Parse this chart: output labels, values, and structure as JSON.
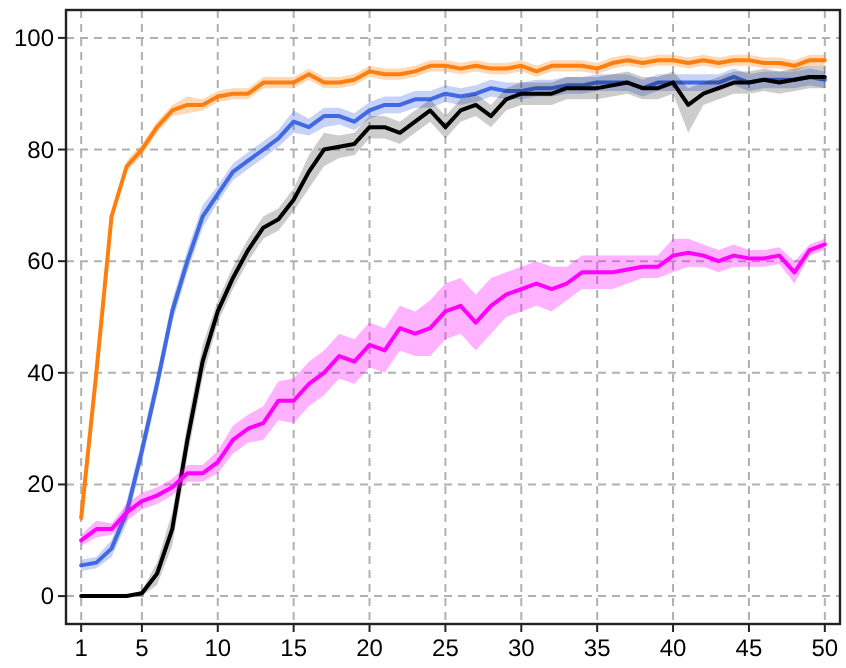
{
  "chart_data": {
    "type": "line",
    "x": [
      1,
      2,
      3,
      4,
      5,
      6,
      7,
      8,
      9,
      10,
      11,
      12,
      13,
      14,
      15,
      16,
      17,
      18,
      19,
      20,
      21,
      22,
      23,
      24,
      25,
      26,
      27,
      28,
      29,
      30,
      31,
      32,
      33,
      34,
      35,
      36,
      37,
      38,
      39,
      40,
      41,
      42,
      43,
      44,
      45,
      46,
      47,
      48,
      49,
      50
    ],
    "xlim": [
      0,
      51
    ],
    "xticks": [
      1,
      5,
      10,
      15,
      20,
      25,
      30,
      35,
      40,
      45,
      50
    ],
    "ylim": [
      -5,
      105
    ],
    "yticks": [
      0,
      20,
      40,
      60,
      80,
      100
    ],
    "grid": true,
    "line_style": "solid",
    "marker": "none",
    "series": [
      {
        "color": "#ff7f0e",
        "values": [
          14,
          40,
          68,
          77,
          80,
          84,
          87,
          88,
          88,
          89.5,
          90,
          90,
          92,
          92,
          92,
          93.5,
          92,
          92,
          92.5,
          94,
          93.5,
          93.5,
          94,
          95,
          95,
          94.5,
          95,
          94.5,
          94.5,
          95,
          94,
          95,
          95,
          95,
          94.5,
          95.5,
          96,
          95.5,
          96,
          96,
          95.5,
          96,
          95.5,
          96,
          96,
          95.5,
          95.5,
          95,
          96,
          96
        ],
        "lower": [
          13,
          39,
          67,
          76,
          79,
          83,
          86,
          86.5,
          87,
          88.5,
          89,
          89,
          91,
          91,
          91,
          92.5,
          91,
          91,
          91.5,
          93,
          92.5,
          92.5,
          93,
          94,
          94,
          93.5,
          94,
          93.5,
          93.5,
          94,
          93,
          94,
          94,
          94,
          93.5,
          94.5,
          95,
          94.5,
          95,
          95,
          94.5,
          95,
          94.5,
          95,
          95,
          94.5,
          94.5,
          94,
          95,
          95
        ],
        "upper": [
          15,
          41,
          69,
          78,
          81,
          85,
          88,
          89.5,
          89,
          90.5,
          91,
          91,
          93,
          93,
          93,
          94.5,
          93,
          93,
          93.5,
          95,
          94.5,
          94.5,
          95,
          96,
          96,
          95.5,
          96,
          95.5,
          95.5,
          96,
          95,
          96,
          96,
          96,
          95.5,
          96.5,
          97,
          96.5,
          97,
          97,
          96.5,
          97,
          96.5,
          97,
          97,
          96.5,
          96.5,
          96,
          97,
          97
        ]
      },
      {
        "color": "#4169e1",
        "values": [
          5.5,
          6,
          8.5,
          15,
          26,
          38,
          51,
          60,
          68,
          72,
          76,
          78,
          80,
          82,
          85,
          84,
          86,
          86,
          85,
          87,
          88,
          88,
          89,
          89,
          90,
          89.5,
          90,
          91,
          90.5,
          90.5,
          91,
          91,
          91.5,
          91.5,
          92,
          92,
          92,
          91,
          92,
          92,
          92,
          92,
          92,
          93,
          92,
          92.5,
          92.5,
          92.5,
          93,
          92.5
        ],
        "lower": [
          4.5,
          5,
          7,
          13,
          24,
          36,
          49,
          58,
          66,
          70.5,
          74.5,
          76.5,
          78.5,
          80.5,
          83,
          82.5,
          84,
          84.5,
          83.5,
          85.5,
          86.5,
          86.5,
          87.5,
          87.5,
          88.5,
          88,
          88.5,
          89.5,
          89,
          89,
          89.5,
          89.5,
          90,
          90,
          90.5,
          90.5,
          90.5,
          89.5,
          90.5,
          90.5,
          90.5,
          90.5,
          90.5,
          91.5,
          90.5,
          91,
          91,
          91,
          91.5,
          91
        ],
        "upper": [
          6.5,
          7,
          10,
          17,
          28,
          40,
          53,
          62,
          70,
          73.5,
          77.5,
          79.5,
          81.5,
          83.5,
          87,
          85.5,
          87.5,
          87.5,
          86.5,
          88.5,
          89.5,
          89.5,
          90.5,
          90.5,
          91.5,
          91,
          91.5,
          92.5,
          92,
          92,
          92.5,
          92.5,
          93,
          93,
          93.5,
          93.5,
          93.5,
          92.5,
          93.5,
          93.5,
          93.5,
          93.5,
          93.5,
          94.5,
          93.5,
          94,
          94,
          94,
          94.5,
          94
        ]
      },
      {
        "color": "#000000",
        "values": [
          0,
          0,
          0,
          0,
          0.5,
          4,
          12,
          28,
          42,
          51,
          57,
          62,
          66,
          67.5,
          71,
          76,
          80,
          80.5,
          81,
          84,
          84,
          83,
          85,
          87,
          84,
          87,
          88,
          86,
          89,
          90,
          90,
          90,
          91,
          91,
          91,
          91.5,
          92,
          91,
          91,
          92,
          88,
          90,
          91,
          92,
          92,
          92.5,
          92,
          92.5,
          93,
          93
        ],
        "lower": [
          0,
          0,
          0,
          0,
          0,
          2,
          9,
          25,
          39,
          49,
          55,
          60,
          64,
          65.5,
          69,
          73,
          77,
          78.5,
          79,
          82,
          82,
          81,
          83,
          85,
          82,
          85,
          86,
          84,
          87,
          88,
          88,
          88,
          89,
          89,
          89,
          89.5,
          90,
          89,
          89,
          90,
          83,
          88,
          89,
          90,
          90,
          90.5,
          90,
          90.5,
          91,
          91
        ],
        "upper": [
          0,
          0,
          0,
          0,
          1,
          6,
          15,
          31,
          45,
          53,
          59,
          64,
          68,
          69.5,
          73,
          79,
          83,
          82.5,
          83,
          86,
          86,
          85,
          87,
          89,
          86,
          89,
          90,
          88,
          91,
          92,
          92,
          92,
          93,
          93,
          93,
          93.5,
          94,
          93,
          93,
          94,
          91,
          92,
          93,
          94,
          94,
          94.5,
          94,
          94.5,
          95,
          95
        ]
      },
      {
        "color": "#ff00ff",
        "values": [
          10,
          12,
          12,
          15,
          17,
          18,
          19.5,
          22,
          22,
          24,
          28,
          30,
          31,
          35,
          35,
          38,
          40,
          43,
          42,
          45,
          44,
          48,
          47,
          48,
          51,
          52,
          49,
          52,
          54,
          55,
          56,
          55,
          56,
          58,
          58,
          58,
          58.5,
          59,
          59,
          61,
          61.5,
          61,
          60,
          61,
          60.5,
          60.5,
          61,
          58,
          62,
          63
        ],
        "lower": [
          9,
          10.5,
          11,
          13.5,
          15.5,
          16.5,
          18,
          20.5,
          20.5,
          22,
          25.5,
          27.5,
          28,
          31.5,
          31,
          34,
          36,
          39,
          38,
          41,
          40,
          44,
          43,
          43,
          46,
          47,
          44,
          47,
          50,
          51,
          52,
          51,
          53,
          55,
          55,
          55,
          56,
          57,
          57,
          58,
          59,
          59,
          58,
          59,
          59,
          59,
          59.5,
          56,
          61,
          62
        ],
        "upper": [
          11,
          13.5,
          13,
          16.5,
          18.5,
          19.5,
          21,
          23.5,
          23.5,
          26,
          30.5,
          32.5,
          34,
          38.5,
          39,
          42,
          44,
          47,
          46,
          49,
          48,
          52,
          51,
          53,
          56,
          57,
          54,
          57,
          58,
          59,
          60,
          59,
          59,
          61,
          61,
          61,
          61,
          61,
          61,
          64,
          64,
          63,
          62,
          63,
          62,
          62,
          62.5,
          60,
          63,
          64
        ]
      }
    ]
  }
}
